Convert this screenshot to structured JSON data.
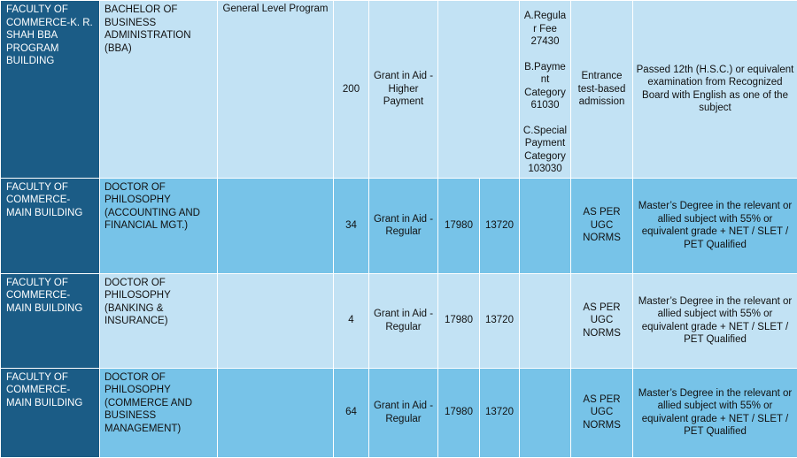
{
  "rows": [
    {
      "faculty": "FACULTY OF COMMERCE-K. R. SHAH BBA PROGRAM BUILDING",
      "program": "BACHELOR OF BUSINESS ADMINISTRATION (BBA)",
      "level": "General Level Program",
      "seats": "200",
      "aid_type": "Grant in Aid - Higher Payment",
      "fee_a": "",
      "fee_b": "",
      "fee_items": [
        "A.Regular Fee 27430",
        "B.Payment Category 61030",
        "C.Special Payment Category 103030"
      ],
      "admission": "Entrance test-based admission",
      "eligibility": "Passed 12th (H.S.C.) or equivalent examination from Recognized Board with English as one of the subject"
    },
    {
      "faculty": "FACULTY OF COMMERCE-MAIN BUILDING",
      "program": "DOCTOR OF PHILOSOPHY (ACCOUNTING AND FINANCIAL MGT.)",
      "level": "",
      "seats": "34",
      "aid_type": "Grant in Aid - Regular",
      "fee_a": "17980",
      "fee_b": "13720",
      "admission": "AS PER UGC NORMS",
      "eligibility": "Master’s Degree in the relevant or allied subject with 55% or equivalent grade + NET / SLET / PET Qualified"
    },
    {
      "faculty": "FACULTY OF COMMERCE-MAIN BUILDING",
      "program": "DOCTOR OF PHILOSOPHY (BANKING & INSURANCE)",
      "level": "",
      "seats": "4",
      "aid_type": "Grant in Aid - Regular",
      "fee_a": "17980",
      "fee_b": "13720",
      "admission": "AS PER UGC NORMS",
      "eligibility": "Master’s Degree in the relevant or allied subject with 55% or equivalent grade + NET / SLET / PET Qualified"
    },
    {
      "faculty": "FACULTY OF COMMERCE-MAIN BUILDING",
      "program": "DOCTOR OF PHILOSOPHY (COMMERCE AND BUSINESS MANAGEMENT)",
      "level": "",
      "seats": "64",
      "aid_type": "Grant in Aid - Regular",
      "fee_a": "17980",
      "fee_b": "13720",
      "admission": "AS PER UGC NORMS",
      "eligibility": "Master’s Degree in the relevant or allied subject with 55% or equivalent grade + NET / SLET / PET Qualified"
    }
  ]
}
